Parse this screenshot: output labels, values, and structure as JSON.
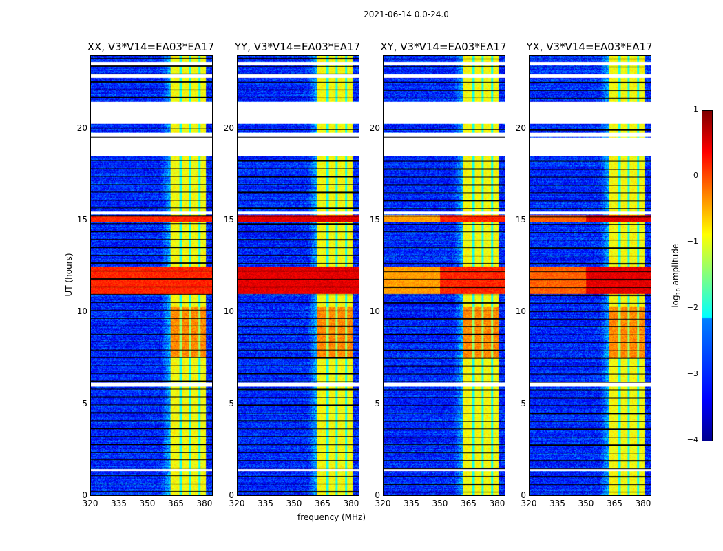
{
  "suptitle": "2021-06-14 0.0-24.0",
  "chart_data": {
    "type": "heatmap",
    "xlabel": "frequency (MHz)",
    "ylabel": "UT (hours)",
    "xlim": [
      320,
      384
    ],
    "ylim": [
      0,
      24
    ],
    "xticks": [
      "320",
      "335",
      "350",
      "365",
      "380"
    ],
    "yticks": [
      "0",
      "5",
      "10",
      "15",
      "20"
    ],
    "panels": [
      {
        "title": "XX, V3*V14=EA03*EA17"
      },
      {
        "title": "YY, V3*V14=EA03*EA17"
      },
      {
        "title": "XY, V3*V14=EA03*EA17"
      },
      {
        "title": "YX, V3*V14=EA03*EA17"
      }
    ],
    "colorbar": {
      "label": "log10 amplitude",
      "label_main": "log",
      "label_sub": "10",
      "label_rest": " amplitude",
      "range": [
        -4,
        1
      ],
      "ticks": [
        "1",
        "0",
        "−1",
        "−2",
        "−3",
        "−4"
      ],
      "colormap": "jet"
    },
    "features": {
      "background_level": -3,
      "rfi_band_mhz": [
        362,
        381
      ],
      "rfi_band_level": -0.9,
      "band_notches_mhz": [
        367.5,
        372.5,
        377.5
      ],
      "strong_rfi_ut": [
        [
          11.0,
          12.5
        ],
        [
          14.95,
          15.3
        ]
      ],
      "flagged_ut": [
        [
          23.5,
          23.7
        ],
        [
          22.8,
          23.0
        ],
        [
          20.3,
          21.5
        ],
        [
          19.6,
          19.8
        ],
        [
          18.55,
          19.55
        ],
        [
          15.35,
          15.5
        ],
        [
          5.95,
          6.15
        ],
        [
          1.35,
          1.45
        ]
      ]
    }
  }
}
